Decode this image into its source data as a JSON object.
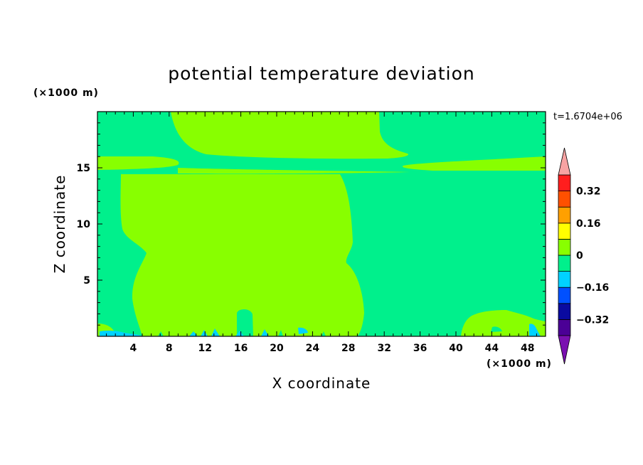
{
  "chart_data": {
    "type": "heatmap",
    "title": "potential temperature deviation",
    "xlabel": "X coordinate",
    "ylabel": "Z coordinate",
    "x_unit": "(×1000 m)",
    "y_unit": "(×1000 m)",
    "time_label": "t=1.6704e+06",
    "xlim": [
      0,
      50
    ],
    "ylim": [
      0,
      20
    ],
    "x_ticks": [
      4,
      8,
      12,
      16,
      20,
      24,
      28,
      32,
      36,
      40,
      44,
      48
    ],
    "y_ticks": [
      5,
      10,
      15
    ],
    "colorbar": {
      "labels": [
        "0.32",
        "0.16",
        "0",
        "-0.16",
        "-0.32"
      ],
      "label_values": [
        0.32,
        0.16,
        0,
        -0.16,
        -0.32
      ],
      "levels": [
        -0.4,
        -0.32,
        -0.24,
        -0.16,
        -0.08,
        0,
        0.08,
        0.16,
        0.24,
        0.32,
        0.4
      ],
      "colors": [
        "#4b0096",
        "#0a0aa0",
        "#0050ff",
        "#00d2ff",
        "#00f08c",
        "#88ff00",
        "#ffff00",
        "#ffa000",
        "#ff5000",
        "#ff1e1e"
      ],
      "under_color": "#7a10b0",
      "over_color": "#f7a3a3"
    },
    "background_color": "#00f08c",
    "positive_color": "#88ff00",
    "negative_color": "#00d2ff"
  }
}
